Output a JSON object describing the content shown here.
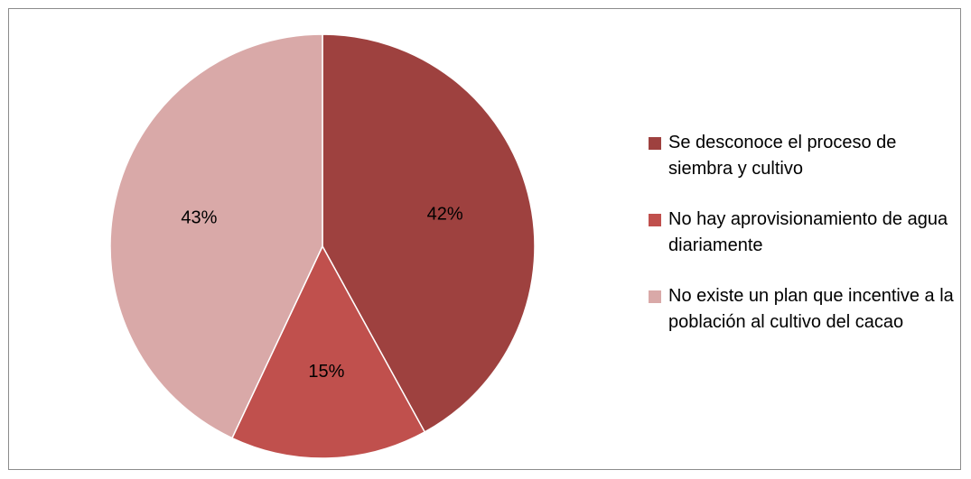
{
  "chart_data": {
    "type": "pie",
    "title": "",
    "categories": [
      "Se desconoce el proceso de siembra y cultivo",
      "No hay aprovisionamiento de agua diariamente",
      "No existe un plan que incentive a la población al cultivo del cacao"
    ],
    "values": [
      42,
      15,
      43
    ],
    "labels": [
      "42%",
      "15%",
      "43%"
    ],
    "colors": [
      "#9e413f",
      "#c0504d",
      "#d9a9a8"
    ],
    "legend_position": "right",
    "start_angle_deg": 0,
    "direction": "clockwise"
  }
}
